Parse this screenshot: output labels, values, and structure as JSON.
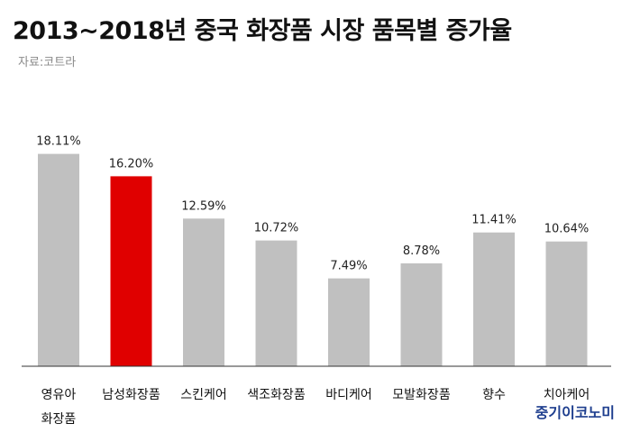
{
  "chart_data": {
    "type": "bar",
    "title": "2013~2018년 중국 화장품 시장 품목별 증가율",
    "source": "자료:코트라",
    "categories": [
      [
        "영유아",
        "화장품"
      ],
      [
        "남성화장품"
      ],
      [
        "스킨케어"
      ],
      [
        "색조화장품"
      ],
      [
        "바디케어"
      ],
      [
        "모발화장품"
      ],
      [
        "향수"
      ],
      [
        "치아케어"
      ]
    ],
    "values": [
      18.11,
      16.2,
      12.59,
      10.72,
      7.49,
      8.78,
      11.41,
      10.64
    ],
    "value_labels": [
      "18.11%",
      "16.20%",
      "12.59%",
      "10.72%",
      "7.49%",
      "8.78%",
      "11.41%",
      "10.64%"
    ],
    "highlight_index": 1,
    "colors": {
      "bar": "#c0c0c0",
      "highlight": "#e00000",
      "axis": "#333333"
    },
    "ylim": [
      0,
      20
    ],
    "grid": false,
    "legend": "none"
  },
  "brand": "중기이코노미"
}
